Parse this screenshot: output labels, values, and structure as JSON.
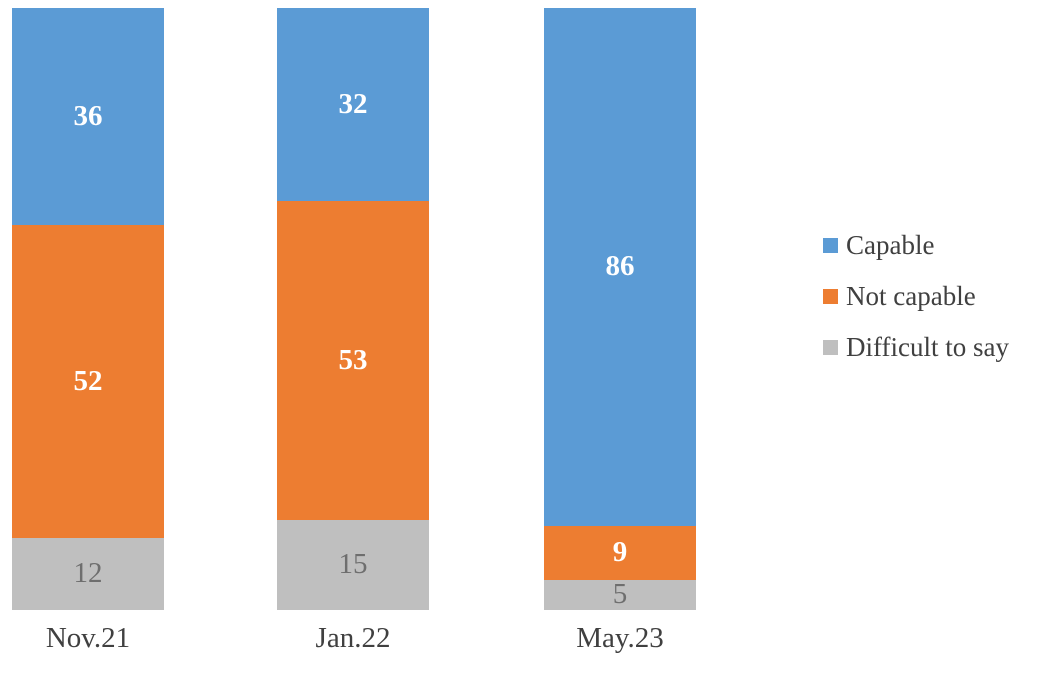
{
  "chart_data": {
    "type": "bar",
    "subtype": "stacked-column",
    "title": "",
    "xlabel": "",
    "ylabel": "",
    "ylim": [
      0,
      100
    ],
    "grid": false,
    "background": "#FFFFFF",
    "legend_position": "right",
    "data_labels": true,
    "text_color": "#404040",
    "categories": [
      "Nov.21",
      "Jan.22",
      "May.23"
    ],
    "series": [
      {
        "name": "Capable",
        "color": "#5B9BD5",
        "label_color": "#FFFFFF",
        "values": [
          36,
          32,
          86
        ]
      },
      {
        "name": "Not capable",
        "color": "#ED7D31",
        "label_color": "#FFFFFF",
        "values": [
          52,
          53,
          9
        ]
      },
      {
        "name": "Difficult to say",
        "color": "#BFBFBF",
        "label_color": "#6E6E6E",
        "values": [
          12,
          15,
          5
        ]
      }
    ]
  }
}
